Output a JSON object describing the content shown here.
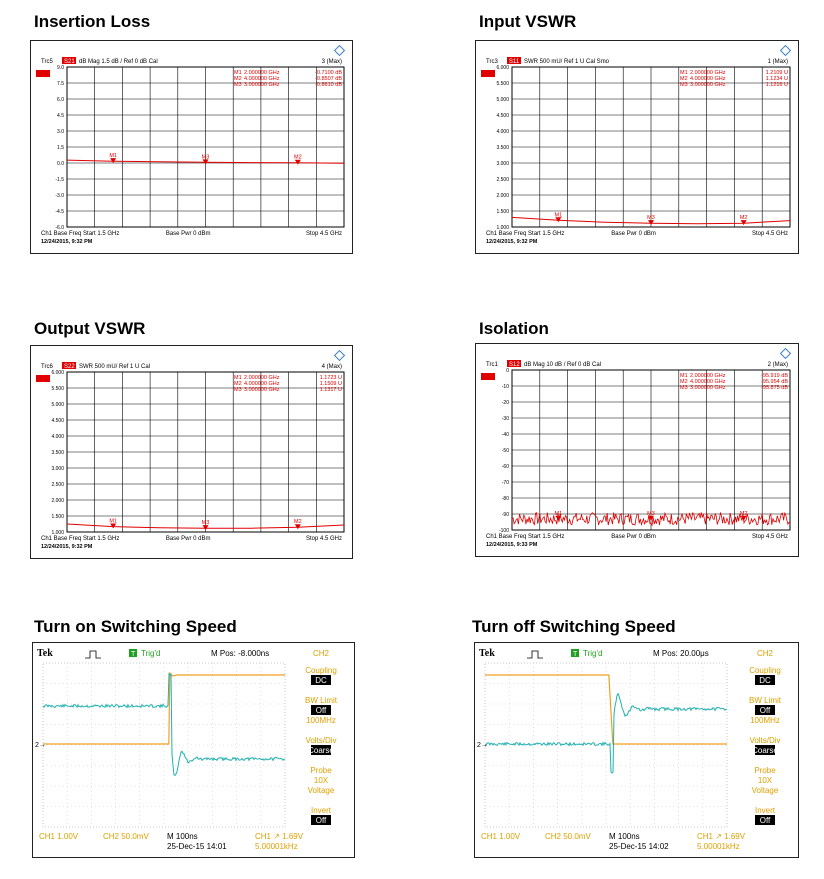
{
  "panels": {
    "p1": {
      "title": "Insertion Loss"
    },
    "p2": {
      "title": "Input VSWR"
    },
    "p3": {
      "title": "Output VSWR"
    },
    "p4": {
      "title": "Isolation"
    },
    "p5": {
      "title": "Turn on Switching Speed"
    },
    "p6": {
      "title": "Turn off Switching Speed"
    }
  },
  "chart_data": [
    {
      "type": "line",
      "instrument": "vna",
      "title": "Insertion Loss",
      "trace_label": "Trc5",
      "param": "S21",
      "scale_text": "dB Mag  1.5 dB /  Ref 0 dB    Cal",
      "max_label": "3 (Max)",
      "markers": [
        {
          "name": "M1",
          "freq": "2.000000 GHz",
          "value": "-0.7100 dB",
          "x": 2.0
        },
        {
          "name": "M2",
          "freq": "4.000000 GHz",
          "value": "-0.8507 dB",
          "x": 4.0
        },
        {
          "name": "M3",
          "freq": "3.000000 GHz",
          "value": "-0.8610 dB",
          "x": 3.0
        }
      ],
      "ytick_labels": [
        "9.0",
        "7.5",
        "6.0",
        "4.5",
        "3.0",
        "1.5",
        "0.0",
        "-1.5",
        "-3.0",
        "-4.5",
        "-6.0"
      ],
      "ylim": [
        -7.5,
        9.0
      ],
      "xlim": [
        1.5,
        4.5
      ],
      "x": [
        1.5,
        2.0,
        2.5,
        3.0,
        3.5,
        4.0,
        4.5
      ],
      "y": [
        -0.6,
        -0.71,
        -0.78,
        -0.83,
        -0.86,
        -0.87,
        -0.92
      ],
      "footer_left": "Ch1  Base Freq  Start  1.5 GHz",
      "footer_mid": "Base Pwr   0 dBm",
      "footer_right": "Stop  4.5 GHz",
      "timestamp": "12/24/2015, 9:32 PM"
    },
    {
      "type": "line",
      "instrument": "vna",
      "title": "Input VSWR",
      "trace_label": "Trc3",
      "param": "S11",
      "scale_text": "SWR  500 mU/  Ref 1 U    Cal Smo",
      "max_label": "1 (Max)",
      "markers": [
        {
          "name": "M1",
          "freq": "2.000000 GHz",
          "value": "1.2109 U",
          "x": 2.0
        },
        {
          "name": "M2",
          "freq": "4.000000 GHz",
          "value": "1.1234 U",
          "x": 4.0
        },
        {
          "name": "M3",
          "freq": "3.000000 GHz",
          "value": "1.1216 U",
          "x": 3.0
        }
      ],
      "ytick_labels": [
        "6.000",
        "5.500",
        "5.000",
        "4.500",
        "4.000",
        "3.500",
        "3.000",
        "2.500",
        "2.000",
        "1.500",
        "1.000"
      ],
      "ylim": [
        1.0,
        6.0
      ],
      "xlim": [
        1.5,
        4.5
      ],
      "x": [
        1.5,
        2.0,
        2.5,
        3.0,
        3.5,
        4.0,
        4.5
      ],
      "y": [
        1.3,
        1.21,
        1.15,
        1.12,
        1.1,
        1.12,
        1.2
      ],
      "footer_left": "Ch1  Base Freq  Start  1.5 GHz",
      "footer_mid": "Base Pwr   0 dBm",
      "footer_right": "Stop  4.5 GHz",
      "timestamp": "12/24/2015, 9:32 PM"
    },
    {
      "type": "line",
      "instrument": "vna",
      "title": "Output VSWR",
      "trace_label": "Trc6",
      "param": "S22",
      "scale_text": "SWR  500 mU/  Ref 1 U    Cal",
      "max_label": "4 (Max)",
      "markers": [
        {
          "name": "M1",
          "freq": "2.000000 GHz",
          "value": "1.1723 U",
          "x": 2.0
        },
        {
          "name": "M2",
          "freq": "4.000000 GHz",
          "value": "1.1509 U",
          "x": 4.0
        },
        {
          "name": "M3",
          "freq": "3.000000 GHz",
          "value": "1.1317 U",
          "x": 3.0
        }
      ],
      "ytick_labels": [
        "6.000",
        "5.500",
        "5.000",
        "4.500",
        "4.000",
        "3.500",
        "3.000",
        "2.500",
        "2.000",
        "1.500",
        "1.000"
      ],
      "ylim": [
        1.0,
        6.0
      ],
      "xlim": [
        1.5,
        4.5
      ],
      "x": [
        1.5,
        2.0,
        2.5,
        3.0,
        3.5,
        4.0,
        4.5
      ],
      "y": [
        1.25,
        1.17,
        1.13,
        1.12,
        1.12,
        1.15,
        1.22
      ],
      "footer_left": "Ch1  Base Freq  Start  1.5 GHz",
      "footer_mid": "Base Pwr   0 dBm",
      "footer_right": "Stop  4.5 GHz",
      "timestamp": "12/24/2015, 9:32 PM"
    },
    {
      "type": "line",
      "instrument": "vna",
      "title": "Isolation",
      "trace_label": "Trc1",
      "param": "S12",
      "scale_text": "dB Mag  10 dB /  Ref 0 dB    Cal",
      "max_label": "2 (Max)",
      "markers": [
        {
          "name": "M1",
          "freq": "2.000000 GHz",
          "value": "-95.919 dB",
          "x": 2.0
        },
        {
          "name": "M2",
          "freq": "4.000000 GHz",
          "value": "-95.954 dB",
          "x": 4.0
        },
        {
          "name": "M3",
          "freq": "3.000000 GHz",
          "value": "-95.875 dB",
          "x": 3.0
        }
      ],
      "ytick_labels": [
        "0",
        "-10",
        "-20",
        "-30",
        "-40",
        "-50",
        "-60",
        "-70",
        "-80",
        "-90",
        "-100"
      ],
      "ylim": [
        -100,
        0
      ],
      "xlim": [
        1.5,
        4.5
      ],
      "noise_floor": -93,
      "noise_amplitude": 4,
      "footer_left": "Ch1  Base Freq  Start  1.5 GHz",
      "footer_mid": "Base Pwr   0 dBm",
      "footer_right": "Stop  4.5 GHz",
      "timestamp": "12/24/2015, 9:33 PM"
    },
    {
      "type": "line",
      "instrument": "scope",
      "title": "Turn on Switching Speed",
      "brand": "Tek",
      "trig_state": "Trig'd",
      "mpos": "M Pos: -8.000ns",
      "ch_header": "CH2",
      "menu": [
        {
          "label": "Coupling",
          "value": "DC"
        },
        {
          "label": "BW Limit",
          "value": "Off",
          "extra": "100MHz"
        },
        {
          "label": "Volts/Div",
          "value": "Coarse"
        },
        {
          "label": "Probe",
          "extra": "10X\nVoltage"
        },
        {
          "label": "Invert",
          "value": "Off"
        }
      ],
      "ch1_scale": "CH1  1.00V",
      "ch2_scale": "CH2  50.0mV",
      "timebase": "M 100ns",
      "date": "25-Dec-15 14:01",
      "trig_level": "CH1 ↗ 1.69V",
      "freq": "5.00001kHz",
      "edge": "rising"
    },
    {
      "type": "line",
      "instrument": "scope",
      "title": "Turn off Switching Speed",
      "brand": "Tek",
      "trig_state": "Trig'd",
      "mpos": "M Pos: 20.00μs",
      "ch_header": "CH2",
      "menu": [
        {
          "label": "Coupling",
          "value": "DC"
        },
        {
          "label": "BW Limit",
          "value": "Off",
          "extra": "100MHz"
        },
        {
          "label": "Volts/Div",
          "value": "Coarse"
        },
        {
          "label": "Probe",
          "extra": "10X\nVoltage"
        },
        {
          "label": "Invert",
          "value": "Off"
        }
      ],
      "ch1_scale": "CH1  1.00V",
      "ch2_scale": "CH2  50.0mV",
      "timebase": "M 100ns",
      "date": "25-Dec-15 14:02",
      "trig_level": "CH1 ↗ 1.69V",
      "freq": "5.00001kHz",
      "edge": "falling"
    }
  ],
  "colors": {
    "trace": "#e00000",
    "ch1": "#f0a020",
    "ch2": "#20b0b0",
    "scope_bg": "#ffffff",
    "menu": "#e0a000"
  }
}
